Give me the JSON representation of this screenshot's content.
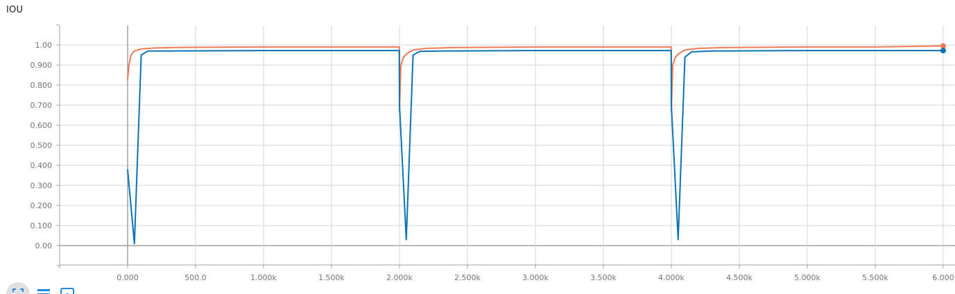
{
  "title": "IOU",
  "toolbar": {
    "fit_icon": "fit-domain-icon",
    "log_icon": "log-scale-icon",
    "zoom_icon": "zoom-selection-icon"
  },
  "colors": {
    "series_orange": "#f0795a",
    "series_blue": "#0b72b5",
    "grid": "#d6d6d6",
    "axis_zero": "#a0a0a0",
    "tick_text": "#757575"
  },
  "chart_data": {
    "type": "line",
    "title": "IOU",
    "xlabel": "",
    "ylabel": "",
    "xlim": [
      -500,
      6100
    ],
    "ylim": [
      -0.1,
      1.1
    ],
    "grid": true,
    "x_ticks": [
      0,
      500,
      1000,
      1500,
      2000,
      2500,
      3000,
      3500,
      4000,
      4500,
      5000,
      5500,
      6000
    ],
    "x_tick_labels": [
      "0.000",
      "500.0",
      "1.000k",
      "1.500k",
      "2.000k",
      "2.500k",
      "3.000k",
      "3.500k",
      "4.000k",
      "4.500k",
      "5.000k",
      "5.500k",
      "6.000"
    ],
    "y_ticks": [
      0,
      0.1,
      0.2,
      0.3,
      0.4,
      0.5,
      0.6,
      0.7,
      0.8,
      0.9,
      1.0
    ],
    "y_tick_labels": [
      "0.00",
      "0.100",
      "0.200",
      "0.300",
      "0.400",
      "0.500",
      "0.600",
      "0.700",
      "0.800",
      "0.900",
      "1.00"
    ],
    "series": [
      {
        "color": "#f0795a",
        "x": [
          0,
          10,
          25,
          50,
          100,
          200,
          400,
          1000,
          1500,
          1999,
          2000,
          2010,
          2030,
          2060,
          2100,
          2200,
          2400,
          3000,
          3500,
          3999,
          4000,
          4010,
          4030,
          4060,
          4100,
          4200,
          4400,
          5000,
          5500,
          6000
        ],
        "y": [
          0.83,
          0.9,
          0.95,
          0.97,
          0.98,
          0.985,
          0.988,
          0.99,
          0.99,
          0.99,
          0.67,
          0.9,
          0.94,
          0.96,
          0.975,
          0.983,
          0.987,
          0.99,
          0.99,
          0.99,
          0.67,
          0.9,
          0.94,
          0.96,
          0.975,
          0.983,
          0.987,
          0.99,
          0.99,
          0.995
        ]
      },
      {
        "color": "#0b72b5",
        "x": [
          0,
          50,
          100,
          150,
          300,
          1000,
          1500,
          1999,
          2000,
          2050,
          2100,
          2150,
          2300,
          3000,
          3500,
          3999,
          4000,
          4050,
          4100,
          4150,
          4300,
          5000,
          5500,
          6000
        ],
        "y": [
          0.38,
          0.01,
          0.95,
          0.97,
          0.97,
          0.972,
          0.972,
          0.972,
          0.7,
          0.03,
          0.95,
          0.968,
          0.97,
          0.972,
          0.972,
          0.972,
          0.7,
          0.03,
          0.94,
          0.966,
          0.97,
          0.972,
          0.972,
          0.972
        ]
      }
    ]
  }
}
